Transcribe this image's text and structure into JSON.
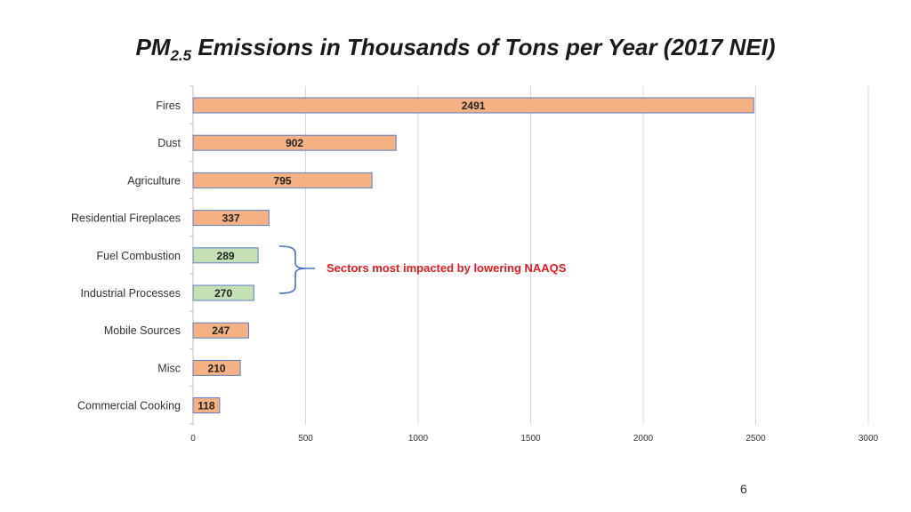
{
  "slide": {
    "title_prefix": "PM",
    "title_subscript": "2.5",
    "title_suffix": " Emissions in Thousands of Tons per Year (2017 NEI)",
    "annotation": "Sectors most impacted by lowering NAAQS",
    "page_number": "6"
  },
  "colors": {
    "default_bar": "#f4b183",
    "highlight_bar": "#c5e0b4",
    "bar_border": "#5b7cc4",
    "annotation": "#e8191e",
    "bracket": "#4472c4",
    "grid": "#d9d9d9"
  },
  "chart_data": {
    "type": "bar",
    "orientation": "horizontal",
    "title": "",
    "xlabel": "",
    "ylabel": "",
    "xlim": [
      0,
      3000
    ],
    "xticks": [
      0,
      500,
      1000,
      1500,
      2000,
      2500,
      3000
    ],
    "grid": true,
    "categories": [
      "Fires",
      "Dust",
      "Agriculture",
      "Residential Fireplaces",
      "Fuel Combustion",
      "Industrial Processes",
      "Mobile Sources",
      "Misc",
      "Commercial Cooking"
    ],
    "values": [
      2491,
      902,
      795,
      337,
      289,
      270,
      247,
      210,
      118
    ],
    "highlighted": [
      "Fuel Combustion",
      "Industrial Processes"
    ],
    "data_labels": true
  }
}
